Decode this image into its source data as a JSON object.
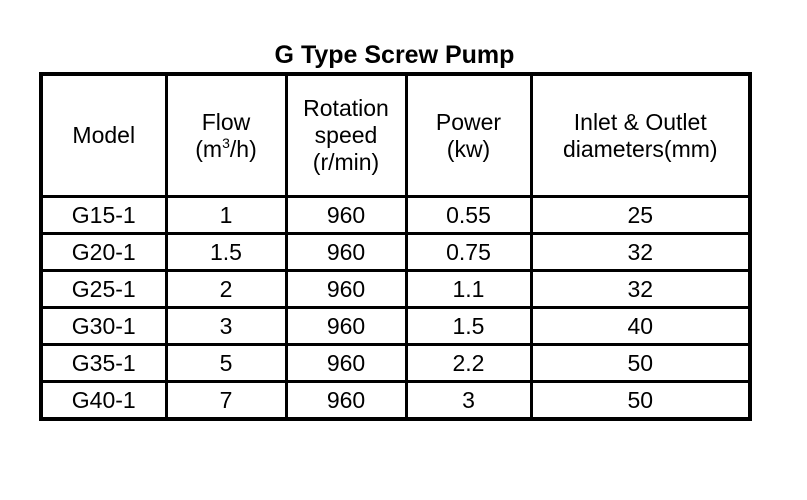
{
  "title": "G Type Screw Pump",
  "headers": {
    "model": "Model",
    "flow_line1": "Flow",
    "flow_line2_pre": "(m",
    "flow_line2_sup": "3",
    "flow_line2_post": "/h)",
    "rotation_line1": "Rotation",
    "rotation_line2": "speed",
    "rotation_line3": "(r/min)",
    "power_line1": "Power",
    "power_line2": "(kw)",
    "inlet_line1": "Inlet & Outlet",
    "inlet_line2": "diameters(mm)"
  },
  "rows": [
    {
      "model": "G15-1",
      "flow": "1",
      "speed": "960",
      "power": "0.55",
      "diameter": "25"
    },
    {
      "model": "G20-1",
      "flow": "1.5",
      "speed": "960",
      "power": "0.75",
      "diameter": "32"
    },
    {
      "model": "G25-1",
      "flow": "2",
      "speed": "960",
      "power": "1.1",
      "diameter": "32"
    },
    {
      "model": "G30-1",
      "flow": "3",
      "speed": "960",
      "power": "1.5",
      "diameter": "40"
    },
    {
      "model": "G35-1",
      "flow": "5",
      "speed": "960",
      "power": "2.2",
      "diameter": "50"
    },
    {
      "model": "G40-1",
      "flow": "7",
      "speed": "960",
      "power": "3",
      "diameter": "50"
    }
  ]
}
